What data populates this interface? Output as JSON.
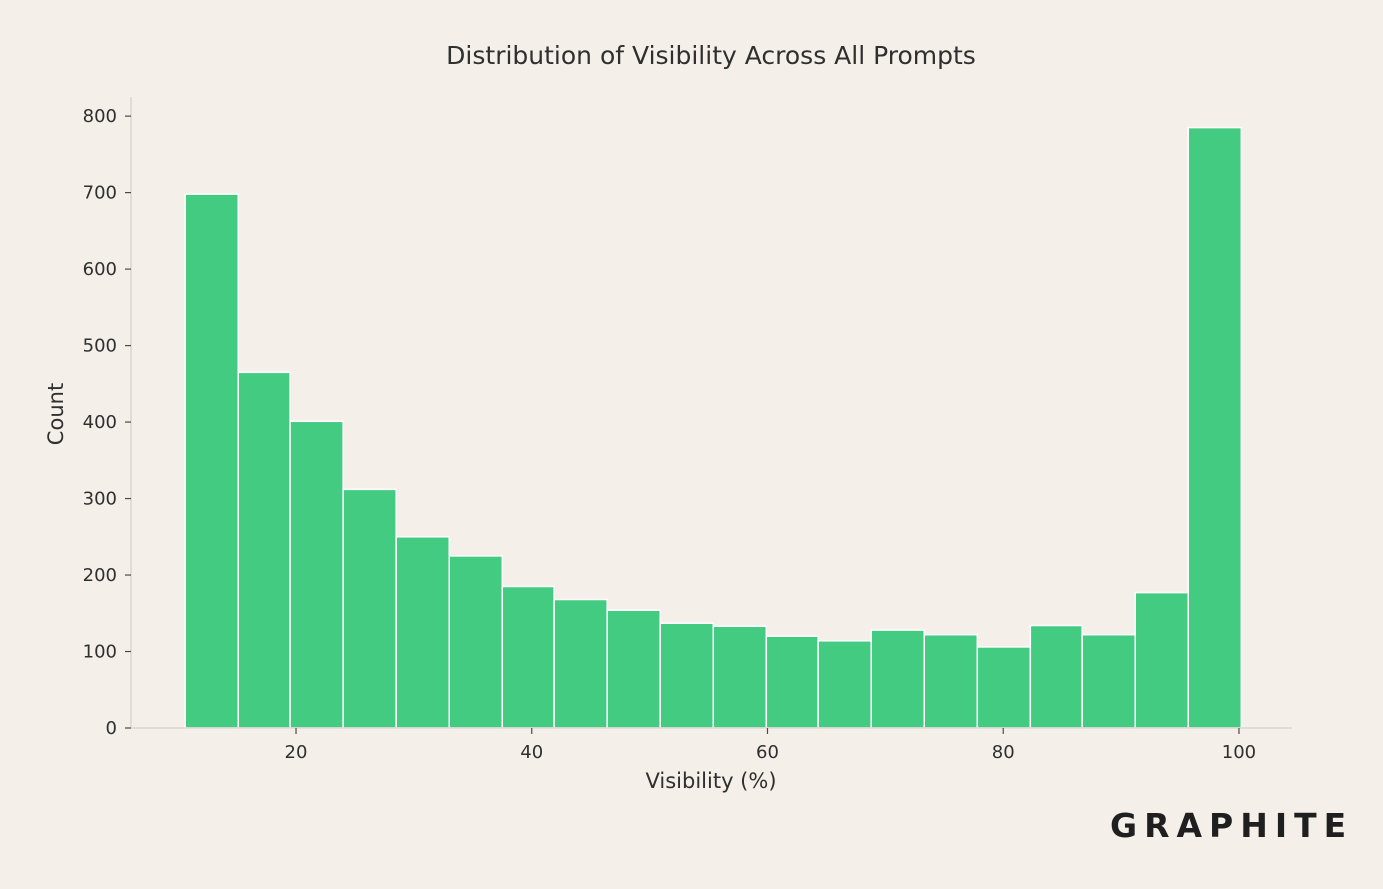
{
  "chart_data": {
    "type": "bar",
    "title": "Distribution of Visibility Across All Prompts",
    "xlabel": "Visibility (%)",
    "ylabel": "Count",
    "x_ticks": [
      20,
      40,
      60,
      80,
      100
    ],
    "y_ticks": [
      0,
      100,
      200,
      300,
      400,
      500,
      600,
      700,
      800
    ],
    "xlim": [
      6,
      104.5
    ],
    "ylim": [
      0,
      825
    ],
    "bar_color": "#43cb82",
    "bins": [
      {
        "start": 10.6,
        "end": 15.1,
        "value": 698
      },
      {
        "start": 15.1,
        "end": 19.5,
        "value": 465
      },
      {
        "start": 19.5,
        "end": 24.0,
        "value": 401
      },
      {
        "start": 24.0,
        "end": 28.5,
        "value": 312
      },
      {
        "start": 28.5,
        "end": 33.0,
        "value": 250
      },
      {
        "start": 33.0,
        "end": 37.5,
        "value": 225
      },
      {
        "start": 37.5,
        "end": 41.9,
        "value": 185
      },
      {
        "start": 41.9,
        "end": 46.4,
        "value": 168
      },
      {
        "start": 46.4,
        "end": 50.9,
        "value": 154
      },
      {
        "start": 50.9,
        "end": 55.4,
        "value": 137
      },
      {
        "start": 55.4,
        "end": 59.9,
        "value": 133
      },
      {
        "start": 59.9,
        "end": 64.3,
        "value": 120
      },
      {
        "start": 64.3,
        "end": 68.8,
        "value": 114
      },
      {
        "start": 68.8,
        "end": 73.3,
        "value": 128
      },
      {
        "start": 73.3,
        "end": 77.8,
        "value": 122
      },
      {
        "start": 77.8,
        "end": 82.3,
        "value": 106
      },
      {
        "start": 82.3,
        "end": 86.7,
        "value": 134
      },
      {
        "start": 86.7,
        "end": 91.2,
        "value": 122
      },
      {
        "start": 91.2,
        "end": 95.7,
        "value": 177
      },
      {
        "start": 95.7,
        "end": 100.2,
        "value": 785
      }
    ],
    "grid": false,
    "legend": "none"
  },
  "brand": {
    "logo_text": "GRAPHITE"
  }
}
